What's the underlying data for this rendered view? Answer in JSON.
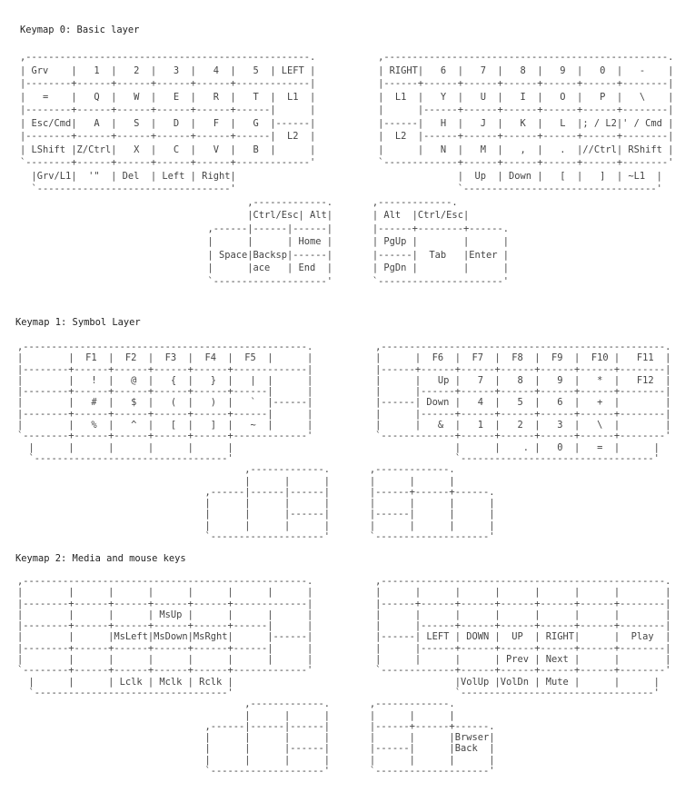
{
  "layers": [
    {
      "title": "Keymap 0: Basic layer",
      "lines": [
        ",--------------------------------------------------.           ,--------------------------------------------------.",
        "| Grv    |   1  |   2  |   3  |   4  |   5  | LEFT |           | RIGHT|   6  |   7  |   8  |   9  |   0  |   -    |",
        "|--------+------+------+------+------+-------------|           |------+------+------+------+------+------+--------|",
        "|   =    |   Q  |   W  |   E  |   R  |   T  |  L1  |           |  L1  |   Y  |   U  |   I  |   O  |   P  |   \\    |",
        "|--------+------+------+------+------+------|      |           |      |------+------+------+------+------+--------|",
        "| Esc/Cmd|   A  |   S  |   D  |   F  |   G  |------|           |------|   H  |   J  |   K  |   L  |; / L2|' / Cmd |",
        "|--------+------+------+------+------+------|  L2  |           |  L2  |------+------+------+------+------+--------|",
        "| LShift |Z/Ctrl|   X  |   C  |   V  |   B  |      |           |      |   N  |   M  |   ,  |   .  |//Ctrl| RShift |",
        "`--------+------+------+------+------+-------------'           `-------------+------+------+------+------+--------'",
        "  |Grv/L1|  '\"  | Del  | Left | Right|                                       |  Up  | Down |   [  |   ]  | ~L1  |",
        "  `----------------------------------'                                       `----------------------------------'",
        "                                        ,-------------.       ,-------------.",
        "                                        |Ctrl/Esc| Alt|       | Alt  |Ctrl/Esc|",
        "                                 ,------|------|------|       |------+--------+------.",
        "                                 |      |      | Home |       | PgUp |        |      |",
        "                                 | Space|Backsp|------|       |------|  Tab   |Enter |",
        "                                 |      |ace   | End  |       | PgDn |        |      |",
        "                                 `--------------------'       `----------------------'"
      ]
    },
    {
      "title": "Keymap 1: Symbol Layer",
      "lines": [
        ",--------------------------------------------------.           ,--------------------------------------------------.",
        "|        |  F1  |  F2  |  F3  |  F4  |  F5  |      |           |      |  F6  |  F7  |  F8  |  F9  |  F10 |   F11  |",
        "|--------+------+------+------+------+-------------|           |------+------+------+------+------+------+--------|",
        "|        |   !  |   @  |   {  |   }  |   |  |      |           |      |   Up |   7  |   8  |   9  |   *  |   F12  |",
        "|--------+------+------+------+------+------|      |           |      |------+------+------+------+------+--------|",
        "|        |   #  |   $  |   (  |   )  |   `  |------|           |------| Down |   4  |   5  |   6  |   +  |        |",
        "|--------+------+------+------+------+------|      |           |      |------+------+------+------+------+--------|",
        "|        |   %  |   ^  |   [  |   ]  |   ~  |      |           |      |   &  |   1  |   2  |   3  |   \\  |        |",
        "`--------+------+------+------+------+-------------'           `-------------+------+------+------+------+--------'",
        "  |      |      |      |      |      |                                       |      |    . |   0  |   =  |      |",
        "  `----------------------------------'                                       `----------------------------------'",
        "                                        ,-------------.       ,-------------.",
        "                                        |      |      |       |      |      |",
        "                                 ,------|------|------|       |------+------+------.",
        "                                 |      |      |      |       |      |      |      |",
        "                                 |      |      |------|       |------|      |      |",
        "                                 |      |      |      |       |      |      |      |",
        "                                 `--------------------'       `--------------------'"
      ]
    },
    {
      "title": "Keymap 2: Media and mouse keys",
      "lines": [
        ",--------------------------------------------------.           ,--------------------------------------------------.",
        "|        |      |      |      |      |      |      |           |      |      |      |      |      |      |        |",
        "|--------+------+------+------+------+-------------|           |------+------+------+------+------+------+--------|",
        "|        |      |      | MsUp |      |      |      |           |      |      |      |      |      |      |        |",
        "|--------+------+------+------+------+------|      |           |      |------+------+------+------+------+--------|",
        "|        |      |MsLeft|MsDown|MsRght|      |------|           |------| LEFT | DOWN |  UP  | RIGHT|      |  Play  |",
        "|--------+------+------+------+------+------|      |           |      |------+------+------+------+------+--------|",
        "|        |      |      |      |      |      |      |           |      |      |      | Prev | Next |      |        |",
        "`--------+------+------+------+------+-------------'           `-------------+------+------+------+------+--------'",
        "  |      |      | Lclk | Mclk | Rclk |                                       |VolUp |VolDn | Mute |      |      |",
        "  `----------------------------------'                                       `----------------------------------'",
        "                                        ,-------------.       ,-------------.",
        "                                        |      |      |       |      |      |",
        "                                 ,------|------|------|       |------+------+------.",
        "                                 |      |      |      |       |      |      |Brwser|",
        "                                 |      |      |------|       |------|      |Back  |",
        "                                 |      |      |      |       |      |      |      |",
        "                                 `--------------------'       `--------------------'"
      ]
    }
  ]
}
